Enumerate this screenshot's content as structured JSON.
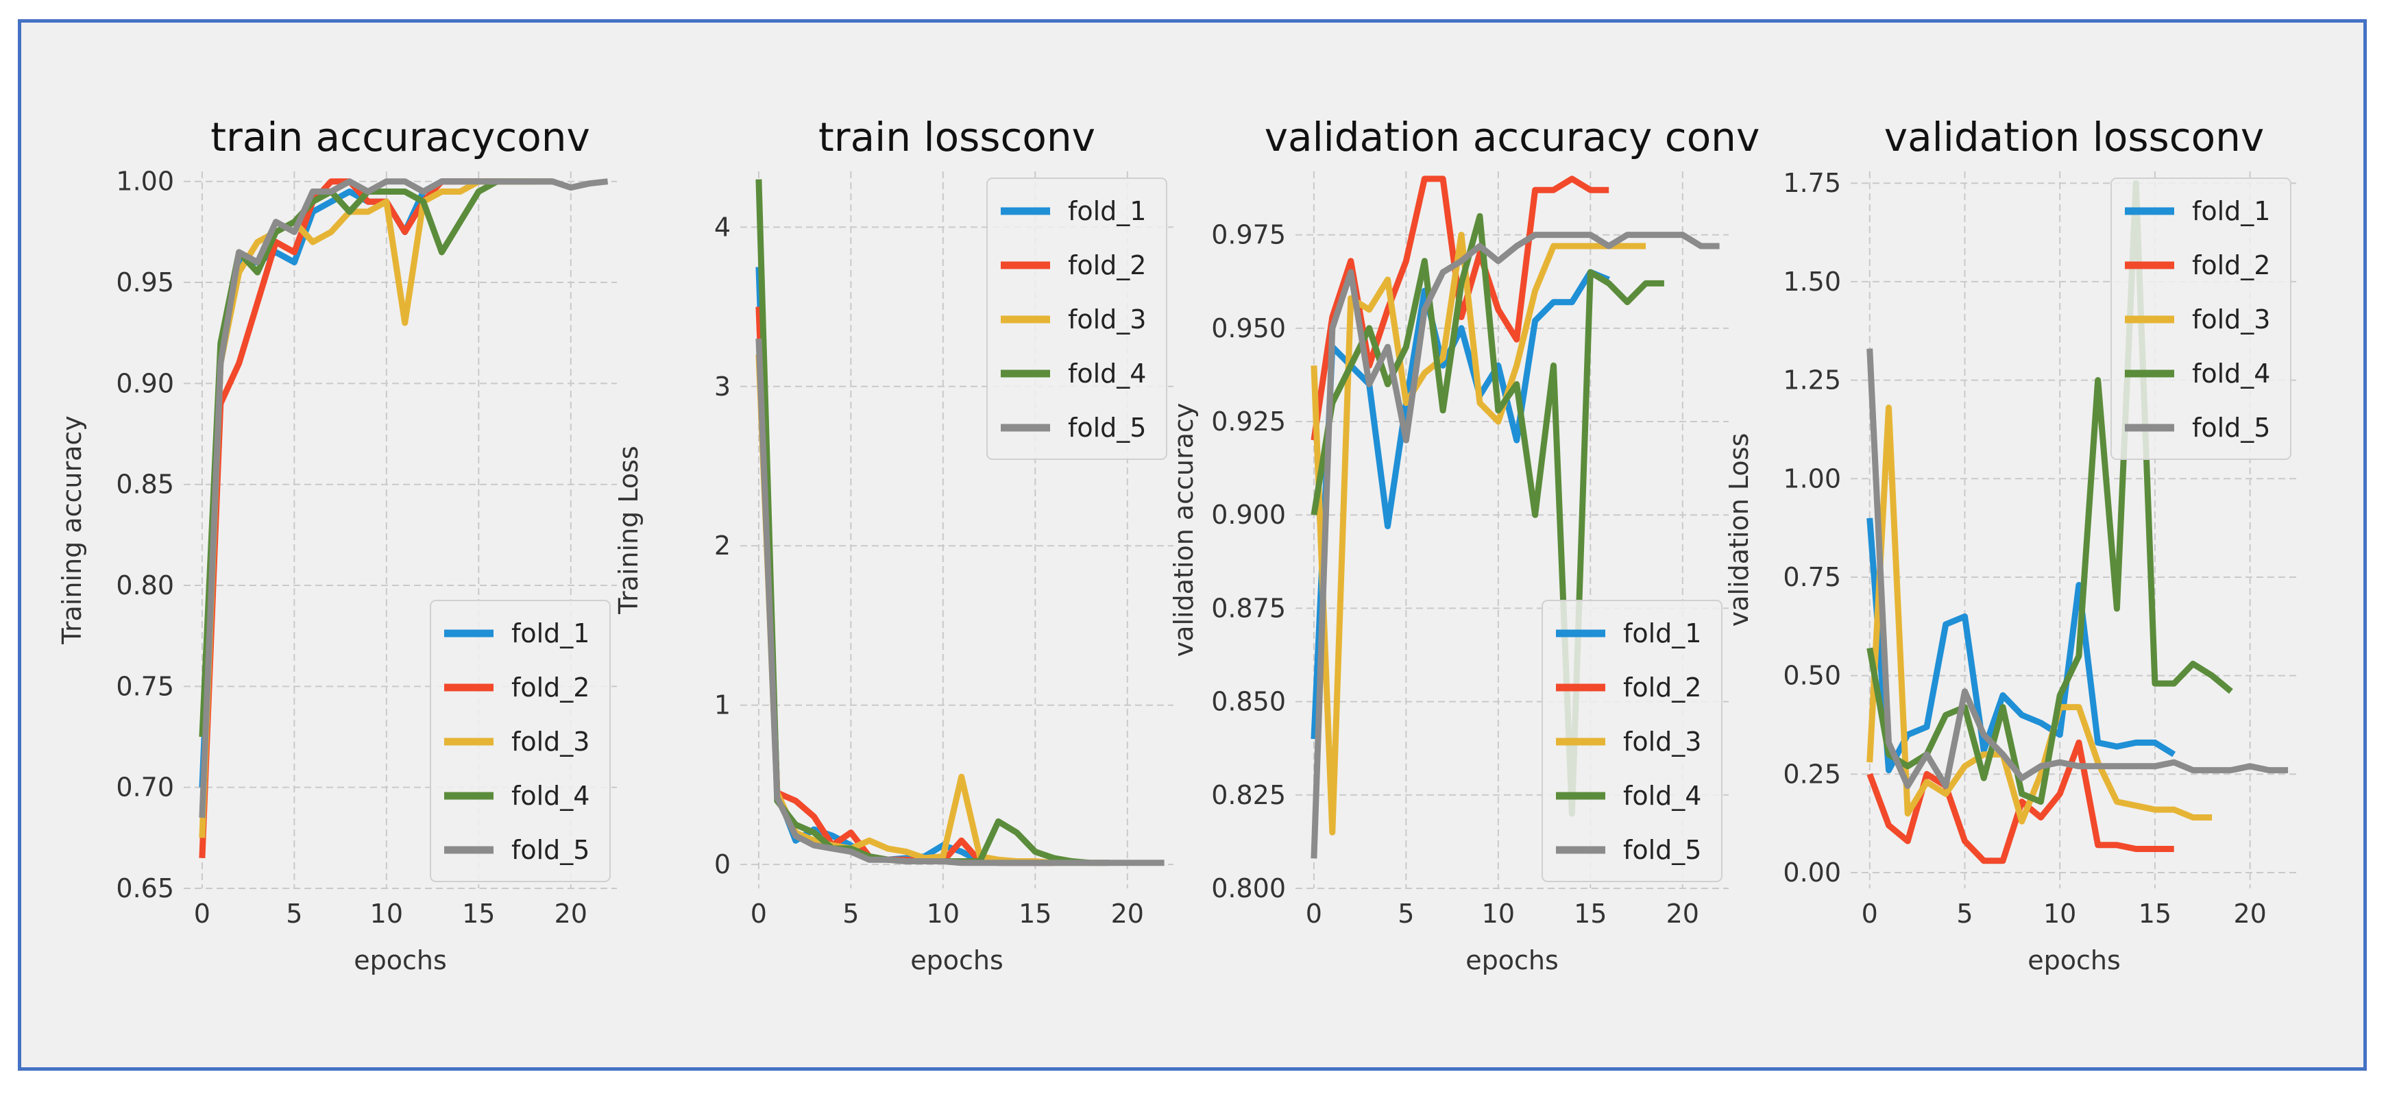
{
  "colors": {
    "fold_1": "#1f8fd6",
    "fold_2": "#f2492b",
    "fold_3": "#e6b435",
    "fold_4": "#5b8c3b",
    "fold_5": "#8b8b8b",
    "frame": "#4472c4",
    "background": "#f0f0f0"
  },
  "chart_data": [
    {
      "type": "line",
      "title": "train accuracyconv",
      "xlabel": "epochs",
      "ylabel": "Training accuracy",
      "xlim": [
        -1,
        22.5
      ],
      "ylim": [
        0.65,
        1.005
      ],
      "xticks": [
        0,
        5,
        10,
        15,
        20
      ],
      "yticks": [
        0.65,
        0.7,
        0.75,
        0.8,
        0.85,
        0.9,
        0.95,
        1.0
      ],
      "ytick_labels": [
        "0.65",
        "0.70",
        "0.75",
        "0.80",
        "0.85",
        "0.90",
        "0.95",
        "1.00"
      ],
      "legend": "bottom-right",
      "series": [
        {
          "name": "fold_1",
          "x": [
            0,
            1,
            2,
            3,
            4,
            5,
            6,
            7,
            8,
            9,
            10,
            11,
            12,
            13,
            14,
            15,
            16
          ],
          "values": [
            0.7,
            0.91,
            0.96,
            0.96,
            0.965,
            0.96,
            0.985,
            0.99,
            0.995,
            0.99,
            0.99,
            0.975,
            0.995,
            1.0,
            1.0,
            1.0,
            1.0
          ]
        },
        {
          "name": "fold_2",
          "x": [
            0,
            1,
            2,
            3,
            4,
            5,
            6,
            7,
            8,
            9,
            10,
            11,
            12,
            13,
            14,
            15,
            16
          ],
          "values": [
            0.665,
            0.89,
            0.91,
            0.94,
            0.97,
            0.965,
            0.99,
            1.0,
            1.0,
            0.99,
            0.99,
            0.975,
            0.99,
            1.0,
            1.0,
            1.0,
            1.0
          ]
        },
        {
          "name": "fold_3",
          "x": [
            0,
            1,
            2,
            3,
            4,
            5,
            6,
            7,
            8,
            9,
            10,
            11,
            12,
            13,
            14,
            15,
            16,
            17,
            18
          ],
          "values": [
            0.675,
            0.91,
            0.955,
            0.97,
            0.975,
            0.98,
            0.97,
            0.975,
            0.985,
            0.985,
            0.99,
            0.93,
            0.99,
            0.995,
            0.995,
            1.0,
            1.0,
            1.0,
            1.0
          ]
        },
        {
          "name": "fold_4",
          "x": [
            0,
            1,
            2,
            3,
            4,
            5,
            6,
            7,
            8,
            9,
            10,
            11,
            12,
            13,
            14,
            15,
            16,
            17,
            18,
            19
          ],
          "values": [
            0.725,
            0.92,
            0.965,
            0.955,
            0.975,
            0.98,
            0.99,
            0.995,
            0.985,
            0.995,
            0.995,
            0.995,
            0.99,
            0.965,
            0.98,
            0.995,
            1.0,
            1.0,
            1.0,
            1.0
          ]
        },
        {
          "name": "fold_5",
          "x": [
            0,
            1,
            2,
            3,
            4,
            5,
            6,
            7,
            8,
            9,
            10,
            11,
            12,
            13,
            14,
            15,
            16,
            17,
            18,
            19,
            20,
            21,
            22
          ],
          "values": [
            0.685,
            0.91,
            0.965,
            0.96,
            0.98,
            0.975,
            0.995,
            0.995,
            1.0,
            0.995,
            1.0,
            1.0,
            0.995,
            1.0,
            1.0,
            1.0,
            1.0,
            1.0,
            1.0,
            1.0,
            0.997,
            0.999,
            1.0
          ]
        }
      ]
    },
    {
      "type": "line",
      "title": "train lossconv",
      "xlabel": "epochs",
      "ylabel": "Training Loss",
      "xlim": [
        -1,
        22.5
      ],
      "ylim": [
        -0.15,
        4.35
      ],
      "xticks": [
        0,
        5,
        10,
        15,
        20
      ],
      "yticks": [
        0,
        1,
        2,
        3,
        4
      ],
      "ytick_labels": [
        "0",
        "1",
        "2",
        "3",
        "4"
      ],
      "legend": "top-right",
      "series": [
        {
          "name": "fold_1",
          "x": [
            0,
            1,
            2,
            3,
            4,
            5,
            6,
            7,
            8,
            9,
            10,
            11,
            12,
            13,
            14,
            15,
            16
          ],
          "values": [
            3.75,
            0.45,
            0.15,
            0.22,
            0.18,
            0.12,
            0.05,
            0.03,
            0.04,
            0.05,
            0.12,
            0.08,
            0.02,
            0.01,
            0.01,
            0.01,
            0.01
          ]
        },
        {
          "name": "fold_2",
          "x": [
            0,
            1,
            2,
            3,
            4,
            5,
            6,
            7,
            8,
            9,
            10,
            11,
            12,
            13,
            14,
            15,
            16
          ],
          "values": [
            3.5,
            0.45,
            0.4,
            0.3,
            0.12,
            0.2,
            0.05,
            0.03,
            0.03,
            0.02,
            0.02,
            0.15,
            0.02,
            0.01,
            0.01,
            0.01,
            0.01
          ]
        },
        {
          "name": "fold_3",
          "x": [
            0,
            1,
            2,
            3,
            4,
            5,
            6,
            7,
            8,
            9,
            10,
            11,
            12,
            13,
            14,
            15,
            16,
            17,
            18
          ],
          "values": [
            3.2,
            0.45,
            0.2,
            0.15,
            0.12,
            0.1,
            0.15,
            0.1,
            0.08,
            0.04,
            0.05,
            0.55,
            0.05,
            0.03,
            0.02,
            0.02,
            0.01,
            0.01,
            0.01
          ]
        },
        {
          "name": "fold_4",
          "x": [
            0,
            1,
            2,
            3,
            4,
            5,
            6,
            7,
            8,
            9,
            10,
            11,
            12,
            13,
            14,
            15,
            16,
            17,
            18,
            19
          ],
          "values": [
            4.3,
            0.4,
            0.25,
            0.2,
            0.1,
            0.1,
            0.05,
            0.03,
            0.02,
            0.02,
            0.02,
            0.02,
            0.02,
            0.27,
            0.2,
            0.08,
            0.04,
            0.02,
            0.01,
            0.01
          ]
        },
        {
          "name": "fold_5",
          "x": [
            0,
            1,
            2,
            3,
            4,
            5,
            6,
            7,
            8,
            9,
            10,
            11,
            12,
            13,
            14,
            15,
            16,
            17,
            18,
            19,
            20,
            21,
            22
          ],
          "values": [
            3.3,
            0.42,
            0.18,
            0.12,
            0.1,
            0.08,
            0.03,
            0.03,
            0.02,
            0.02,
            0.02,
            0.01,
            0.01,
            0.01,
            0.01,
            0.01,
            0.01,
            0.01,
            0.01,
            0.01,
            0.01,
            0.01,
            0.01
          ]
        }
      ]
    },
    {
      "type": "line",
      "title": "validation accuracy conv",
      "xlabel": "epochs",
      "ylabel": "validation accuracy",
      "xlim": [
        -1,
        22.5
      ],
      "ylim": [
        0.8,
        0.992
      ],
      "xticks": [
        0,
        5,
        10,
        15,
        20
      ],
      "yticks": [
        0.8,
        0.825,
        0.85,
        0.875,
        0.9,
        0.925,
        0.95,
        0.975
      ],
      "ytick_labels": [
        "0.800",
        "0.825",
        "0.850",
        "0.875",
        "0.900",
        "0.925",
        "0.950",
        "0.975"
      ],
      "legend": "bottom-right",
      "series": [
        {
          "name": "fold_1",
          "x": [
            0,
            1,
            2,
            3,
            4,
            5,
            6,
            7,
            8,
            9,
            10,
            11,
            12,
            13,
            14,
            15,
            16
          ],
          "values": [
            0.84,
            0.945,
            0.94,
            0.935,
            0.897,
            0.93,
            0.96,
            0.94,
            0.95,
            0.932,
            0.94,
            0.92,
            0.952,
            0.957,
            0.957,
            0.965,
            0.963
          ]
        },
        {
          "name": "fold_2",
          "x": [
            0,
            1,
            2,
            3,
            4,
            5,
            6,
            7,
            8,
            9,
            10,
            11,
            12,
            13,
            14,
            15,
            16
          ],
          "values": [
            0.92,
            0.953,
            0.968,
            0.94,
            0.955,
            0.968,
            0.99,
            0.99,
            0.953,
            0.97,
            0.955,
            0.947,
            0.987,
            0.987,
            0.99,
            0.987,
            0.987
          ]
        },
        {
          "name": "fold_3",
          "x": [
            0,
            1,
            2,
            3,
            4,
            5,
            6,
            7,
            8,
            9,
            10,
            11,
            12,
            13,
            14,
            15,
            16,
            17,
            18
          ],
          "values": [
            0.94,
            0.815,
            0.958,
            0.955,
            0.963,
            0.93,
            0.938,
            0.942,
            0.975,
            0.93,
            0.925,
            0.94,
            0.96,
            0.972,
            0.972,
            0.972,
            0.972,
            0.972,
            0.972
          ]
        },
        {
          "name": "fold_4",
          "x": [
            0,
            1,
            2,
            3,
            4,
            5,
            6,
            7,
            8,
            9,
            10,
            11,
            12,
            13,
            14,
            15,
            16,
            17,
            18,
            19
          ],
          "values": [
            0.9,
            0.93,
            0.94,
            0.95,
            0.935,
            0.945,
            0.968,
            0.928,
            0.962,
            0.98,
            0.928,
            0.935,
            0.9,
            0.94,
            0.82,
            0.965,
            0.962,
            0.957,
            0.962,
            0.962
          ]
        },
        {
          "name": "fold_5",
          "x": [
            0,
            1,
            2,
            3,
            4,
            5,
            6,
            7,
            8,
            9,
            10,
            11,
            12,
            13,
            14,
            15,
            16,
            17,
            18,
            19,
            20,
            21,
            22
          ],
          "values": [
            0.808,
            0.95,
            0.965,
            0.935,
            0.945,
            0.92,
            0.955,
            0.965,
            0.968,
            0.972,
            0.968,
            0.972,
            0.975,
            0.975,
            0.975,
            0.975,
            0.972,
            0.975,
            0.975,
            0.975,
            0.975,
            0.972,
            0.972
          ]
        }
      ]
    },
    {
      "type": "line",
      "title": "validation lossconv",
      "xlabel": "epochs",
      "ylabel": "validation Loss",
      "xlim": [
        -1,
        22.5
      ],
      "ylim": [
        -0.04,
        1.78
      ],
      "xticks": [
        0,
        5,
        10,
        15,
        20
      ],
      "yticks": [
        0.0,
        0.25,
        0.5,
        0.75,
        1.0,
        1.25,
        1.5,
        1.75
      ],
      "ytick_labels": [
        "0.00",
        "0.25",
        "0.50",
        "0.75",
        "1.00",
        "1.25",
        "1.50",
        "1.75"
      ],
      "legend": "top-right",
      "series": [
        {
          "name": "fold_1",
          "x": [
            0,
            1,
            2,
            3,
            4,
            5,
            6,
            7,
            8,
            9,
            10,
            11,
            12,
            13,
            14,
            15,
            16
          ],
          "values": [
            0.9,
            0.26,
            0.35,
            0.37,
            0.63,
            0.65,
            0.31,
            0.45,
            0.4,
            0.38,
            0.35,
            0.73,
            0.33,
            0.32,
            0.33,
            0.33,
            0.3
          ]
        },
        {
          "name": "fold_2",
          "x": [
            0,
            1,
            2,
            3,
            4,
            5,
            6,
            7,
            8,
            9,
            10,
            11,
            12,
            13,
            14,
            15,
            16
          ],
          "values": [
            0.25,
            0.12,
            0.08,
            0.25,
            0.22,
            0.08,
            0.03,
            0.03,
            0.18,
            0.14,
            0.2,
            0.33,
            0.07,
            0.07,
            0.06,
            0.06,
            0.06
          ]
        },
        {
          "name": "fold_3",
          "x": [
            0,
            1,
            2,
            3,
            4,
            5,
            6,
            7,
            8,
            9,
            10,
            11,
            12,
            13,
            14,
            15,
            16,
            17,
            18
          ],
          "values": [
            0.28,
            1.18,
            0.15,
            0.23,
            0.2,
            0.27,
            0.3,
            0.3,
            0.13,
            0.25,
            0.42,
            0.42,
            0.28,
            0.18,
            0.17,
            0.16,
            0.16,
            0.14,
            0.14
          ]
        },
        {
          "name": "fold_4",
          "x": [
            0,
            1,
            2,
            3,
            4,
            5,
            6,
            7,
            8,
            9,
            10,
            11,
            12,
            13,
            14,
            15,
            16,
            17,
            18,
            19
          ],
          "values": [
            0.57,
            0.3,
            0.27,
            0.3,
            0.4,
            0.42,
            0.24,
            0.42,
            0.2,
            0.18,
            0.45,
            0.55,
            1.25,
            0.67,
            1.75,
            0.48,
            0.48,
            0.53,
            0.5,
            0.46
          ]
        },
        {
          "name": "fold_5",
          "x": [
            0,
            1,
            2,
            3,
            4,
            5,
            6,
            7,
            8,
            9,
            10,
            11,
            12,
            13,
            14,
            15,
            16,
            17,
            18,
            19,
            20,
            21,
            22
          ],
          "values": [
            1.33,
            0.33,
            0.22,
            0.3,
            0.22,
            0.46,
            0.35,
            0.3,
            0.24,
            0.27,
            0.28,
            0.27,
            0.27,
            0.27,
            0.27,
            0.27,
            0.28,
            0.26,
            0.26,
            0.26,
            0.27,
            0.26,
            0.26
          ]
        }
      ]
    }
  ]
}
